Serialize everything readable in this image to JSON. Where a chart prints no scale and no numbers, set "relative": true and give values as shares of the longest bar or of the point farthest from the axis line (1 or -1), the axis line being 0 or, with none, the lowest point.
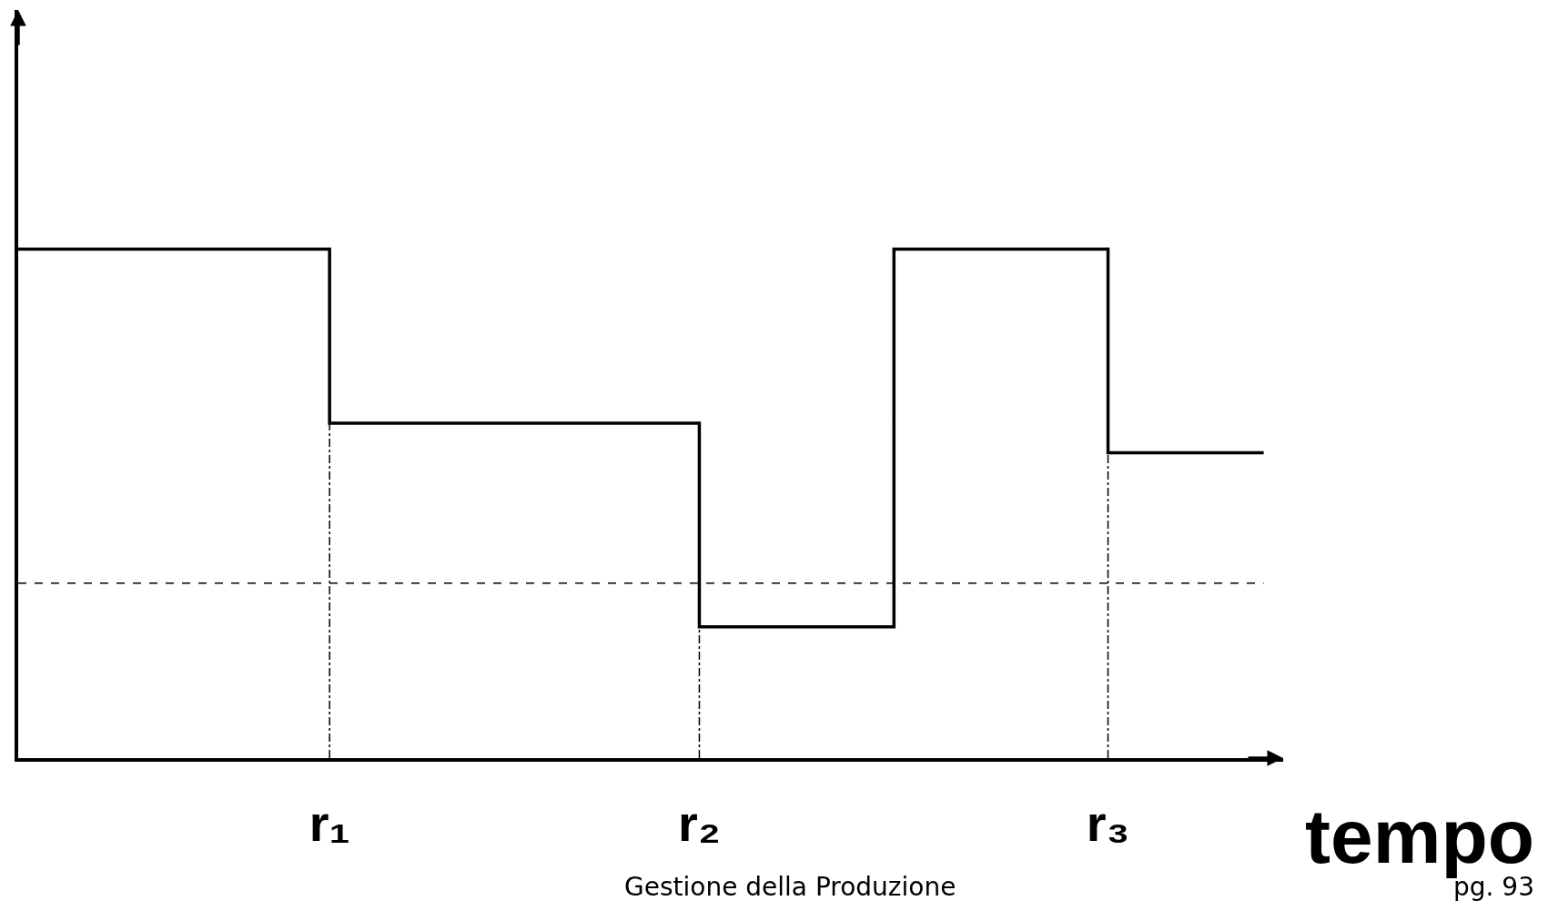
{
  "chart_data": {
    "type": "step",
    "relative": true,
    "xlabel": "tempo",
    "categories": [
      null,
      null,
      null,
      null,
      null,
      null,
      null,
      null,
      null,
      null,
      null,
      null,
      null,
      null,
      null,
      null,
      "r₁",
      null,
      null,
      null,
      null,
      null,
      null,
      null,
      null,
      null,
      null,
      null,
      null,
      null,
      null,
      null,
      null,
      null,
      null,
      "r₂",
      null,
      null,
      null,
      null,
      null,
      null,
      null,
      null,
      null,
      null,
      null,
      null,
      null,
      null,
      null,
      null,
      null,
      null,
      null,
      null,
      "r₃",
      null,
      null,
      null,
      null,
      null,
      null,
      null,
      null
    ],
    "values": [
      1,
      1,
      1,
      1,
      1,
      1,
      1,
      1,
      1,
      1,
      1,
      1,
      1,
      1,
      1,
      1,
      0.658,
      0.658,
      0.658,
      0.658,
      0.658,
      0.658,
      0.658,
      0.658,
      0.658,
      0.658,
      0.658,
      0.658,
      0.658,
      0.658,
      0.658,
      0.658,
      0.658,
      0.658,
      0.658,
      0.258,
      0.258,
      0.258,
      0.258,
      0.258,
      0.258,
      0.258,
      0.258,
      0.258,
      0.258,
      1,
      1,
      1,
      1,
      1,
      1,
      1,
      1,
      1,
      1,
      1,
      0.6,
      0.6,
      0.6,
      0.6,
      0.6,
      0.6,
      0.6,
      0.6,
      0.6
    ],
    "color": "#000000",
    "ref_lines": [
      {
        "axis": "y",
        "value": 0.344,
        "label": null,
        "line_style": "dashed",
        "color": "#000000"
      },
      {
        "axis": "x",
        "value": "r₁",
        "label": null,
        "line_style": "dashdot",
        "color": "#000000"
      },
      {
        "axis": "x",
        "value": "r₂",
        "label": null,
        "line_style": "dashdot",
        "color": "#000000"
      },
      {
        "axis": "x",
        "value": "r₃",
        "label": null,
        "line_style": "dashdot",
        "color": "#000000"
      }
    ],
    "annotations": [
      "Gestione della Produzione",
      "pg. 93"
    ],
    "grid": false,
    "legend": false,
    "marker": "none",
    "line_style": "solid"
  }
}
